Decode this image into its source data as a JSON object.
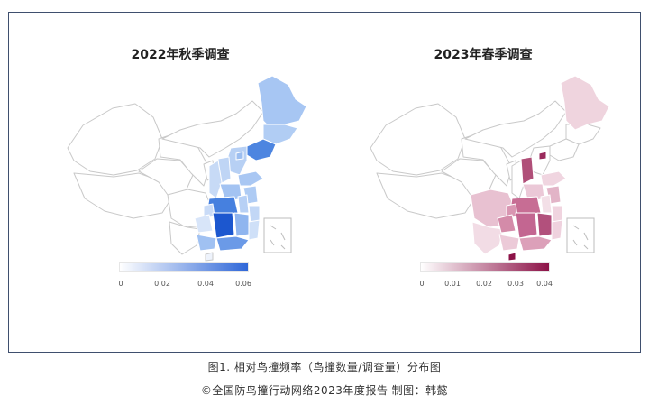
{
  "maps": [
    {
      "title": "2022年秋季调查",
      "legend": {
        "ticks": [
          "0",
          "0.02",
          "0.04",
          "0.06"
        ],
        "color_from": "#ffffff",
        "color_to": "#2f67d8"
      },
      "shade_color": "#2f67d8"
    },
    {
      "title": "2023年春季调查",
      "legend": {
        "ticks": [
          "0",
          "0.01",
          "0.02",
          "0.03",
          "0.04"
        ],
        "color_from": "#ffffff",
        "color_to": "#8c1247"
      },
      "shade_color": "#8c1247"
    }
  ],
  "caption": {
    "line1": "图1. 相对鸟撞频率（鸟撞数量/调查量）分布图",
    "line2": "©全国防鸟撞行动网络2023年度报告 制图：韩懿"
  }
}
